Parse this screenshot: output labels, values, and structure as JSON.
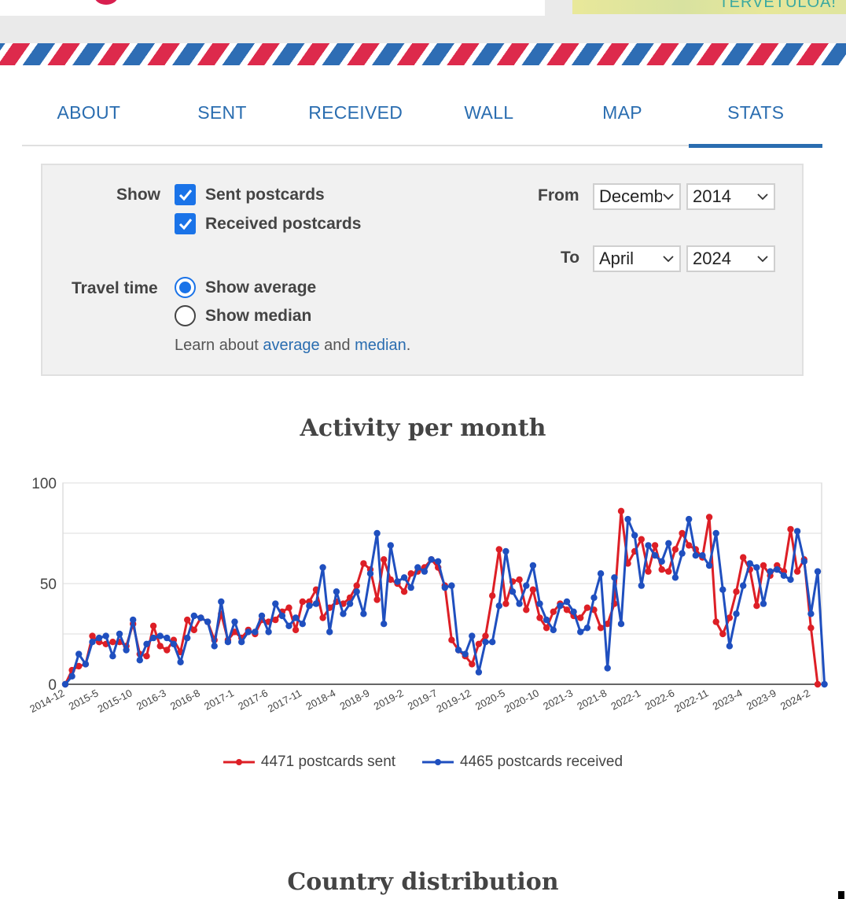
{
  "header": {
    "stamp_text": "TERVETULOA!"
  },
  "tabs": [
    {
      "label": "ABOUT"
    },
    {
      "label": "SENT"
    },
    {
      "label": "RECEIVED"
    },
    {
      "label": "WALL"
    },
    {
      "label": "MAP"
    },
    {
      "label": "STATS",
      "active": true
    }
  ],
  "filters": {
    "show_label": "Show",
    "sent_label": "Sent postcards",
    "sent_checked": true,
    "received_label": "Received postcards",
    "received_checked": true,
    "travel_label": "Travel time",
    "average_label": "Show average",
    "average_selected": true,
    "median_label": "Show median",
    "median_selected": false,
    "learn_prefix": "Learn about",
    "learn_average": "average",
    "learn_and": "and",
    "learn_median": "median",
    "learn_suffix": ".",
    "from_label": "From",
    "from_month": "Decemb",
    "from_year": "2014",
    "to_label": "To",
    "to_month": "April",
    "to_year": "2024"
  },
  "chart_data": {
    "type": "line",
    "title": "Activity per month",
    "ylim": [
      0,
      100
    ],
    "y_ticks": [
      0,
      50,
      100
    ],
    "grid": true,
    "legend_position": "bottom",
    "x_tick_labels": [
      "2014-12",
      "2015-5",
      "2015-10",
      "2016-3",
      "2016-8",
      "2017-1",
      "2017-6",
      "2017-11",
      "2018-4",
      "2018-9",
      "2019-2",
      "2019-7",
      "2019-12",
      "2020-5",
      "2020-10",
      "2021-3",
      "2021-8",
      "2022-1",
      "2022-6",
      "2022-11",
      "2023-4",
      "2023-9",
      "2024-2"
    ],
    "x_start": "2014-12",
    "colors": {
      "sent": "#dd1f26",
      "received": "#1f4fbf"
    },
    "series": [
      {
        "name": "4471 postcards sent",
        "key": "sent",
        "values": [
          0,
          7,
          9,
          10,
          24,
          21,
          20,
          21,
          21,
          19,
          30,
          15,
          14,
          29,
          19,
          17,
          22,
          16,
          32,
          27,
          33,
          31,
          22,
          35,
          22,
          26,
          23,
          27,
          25,
          32,
          31,
          32,
          36,
          38,
          27,
          41,
          41,
          47,
          33,
          38,
          41,
          40,
          43,
          49,
          60,
          57,
          42,
          62,
          52,
          50,
          46,
          55,
          56,
          58,
          62,
          58,
          49,
          22,
          17,
          14,
          10,
          20,
          24,
          44,
          67,
          40,
          51,
          52,
          37,
          47,
          33,
          28,
          36,
          40,
          37,
          34,
          33,
          38,
          37,
          28,
          30,
          40,
          86,
          60,
          66,
          72,
          56,
          69,
          57,
          56,
          67,
          75,
          69,
          67,
          63,
          83,
          31,
          25,
          33,
          46,
          63,
          57,
          39,
          59,
          54,
          59,
          56,
          77,
          56,
          62,
          28,
          0
        ]
      },
      {
        "name": "4465 postcards received",
        "key": "received",
        "values": [
          0,
          4,
          15,
          10,
          21,
          23,
          24,
          14,
          25,
          17,
          32,
          12,
          20,
          23,
          24,
          23,
          20,
          11,
          23,
          34,
          33,
          31,
          19,
          41,
          21,
          31,
          21,
          26,
          26,
          34,
          26,
          40,
          34,
          29,
          33,
          30,
          39,
          40,
          58,
          26,
          46,
          35,
          40,
          46,
          35,
          55,
          75,
          30,
          69,
          51,
          53,
          48,
          58,
          56,
          62,
          61,
          48,
          49,
          17,
          15,
          24,
          6,
          21,
          21,
          39,
          66,
          46,
          40,
          49,
          59,
          40,
          32,
          27,
          39,
          41,
          36,
          26,
          28,
          43,
          55,
          8,
          53,
          30,
          82,
          74,
          49,
          69,
          64,
          61,
          70,
          53,
          65,
          82,
          64,
          64,
          59,
          75,
          47,
          19,
          35,
          49,
          60,
          58,
          40,
          56,
          57,
          54,
          52,
          76,
          61,
          35,
          56,
          0
        ]
      }
    ]
  },
  "country_section": {
    "title": "Country distribution"
  }
}
